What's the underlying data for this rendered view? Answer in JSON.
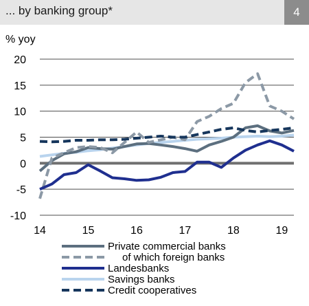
{
  "header": {
    "title": "... by banking group*",
    "badge": "4"
  },
  "chart_data": {
    "type": "line",
    "ylabel": "% yoy",
    "ylim": [
      -10,
      20
    ],
    "yticks": [
      -10,
      -5,
      0,
      5,
      10,
      15,
      20
    ],
    "xlim": [
      14,
      19.25
    ],
    "xticks": [
      14,
      15,
      16,
      17,
      18,
      19
    ],
    "grid": "horizontal",
    "legend": "bottom",
    "series": [
      {
        "name": "Private commercial banks",
        "color": "#5c6f7f",
        "style": "solid",
        "x": [
          14,
          14.25,
          14.5,
          14.75,
          15,
          15.25,
          15.5,
          15.75,
          16,
          16.25,
          16.5,
          16.75,
          17,
          17.25,
          17.5,
          17.75,
          18,
          18.25,
          18.5,
          18.75,
          19,
          19.25
        ],
        "values": [
          -1.5,
          0.5,
          1.8,
          2.2,
          3.0,
          2.8,
          2.7,
          3.2,
          3.7,
          3.8,
          3.5,
          3.2,
          2.8,
          2.3,
          3.5,
          4.2,
          5.0,
          6.8,
          7.2,
          6.2,
          5.8,
          6.3
        ]
      },
      {
        "name": "of which foreign banks",
        "color": "#8c99a6",
        "style": "dashed",
        "x": [
          14,
          14.25,
          14.5,
          14.75,
          15,
          15.25,
          15.5,
          15.75,
          16,
          16.25,
          16.5,
          16.75,
          17,
          17.25,
          17.5,
          17.75,
          18,
          18.25,
          18.5,
          18.75,
          19,
          19.25
        ],
        "values": [
          -6.8,
          1.0,
          2.0,
          3.0,
          3.2,
          3.0,
          2.0,
          4.0,
          6.0,
          4.0,
          4.5,
          5.0,
          4.5,
          8.0,
          9.0,
          10.5,
          11.5,
          15.5,
          17.2,
          11.0,
          10.0,
          8.5
        ]
      },
      {
        "name": "Landesbanks",
        "color": "#1f2f8f",
        "style": "solid",
        "x": [
          14,
          14.25,
          14.5,
          14.75,
          15,
          15.25,
          15.5,
          15.75,
          16,
          16.25,
          16.5,
          16.75,
          17,
          17.25,
          17.5,
          17.75,
          18,
          18.25,
          18.5,
          18.75,
          19,
          19.25
        ],
        "values": [
          -5.0,
          -4.0,
          -2.2,
          -1.8,
          -0.3,
          -1.5,
          -2.8,
          -3.0,
          -3.3,
          -3.2,
          -2.7,
          -1.8,
          -1.6,
          0.2,
          0.2,
          -0.8,
          1.0,
          2.5,
          3.5,
          4.3,
          3.5,
          2.3
        ]
      },
      {
        "name": "Savings banks",
        "color": "#b9d4ee",
        "style": "solid",
        "x": [
          14,
          14.25,
          14.5,
          14.75,
          15,
          15.25,
          15.5,
          15.75,
          16,
          16.25,
          16.5,
          16.75,
          17,
          17.25,
          17.5,
          17.75,
          18,
          18.25,
          18.5,
          18.75,
          19,
          19.25
        ],
        "values": [
          1.3,
          1.6,
          1.9,
          2.1,
          2.4,
          2.6,
          2.9,
          3.2,
          3.5,
          3.8,
          4.0,
          4.2,
          4.4,
          4.6,
          4.7,
          4.8,
          5.0,
          5.1,
          5.2,
          5.1,
          5.2,
          5.4
        ]
      },
      {
        "name": "Credit cooperatives",
        "color": "#16365c",
        "style": "dashed",
        "x": [
          14,
          14.25,
          14.5,
          14.75,
          15,
          15.25,
          15.5,
          15.75,
          16,
          16.25,
          16.5,
          16.75,
          17,
          17.25,
          17.5,
          17.75,
          18,
          18.25,
          18.5,
          18.75,
          19,
          19.25
        ],
        "values": [
          4.2,
          4.1,
          4.2,
          4.4,
          4.4,
          4.5,
          4.5,
          4.6,
          4.8,
          5.0,
          5.2,
          5.0,
          5.0,
          5.5,
          6.0,
          6.5,
          6.8,
          6.3,
          6.0,
          6.3,
          6.5,
          6.8
        ]
      }
    ]
  }
}
